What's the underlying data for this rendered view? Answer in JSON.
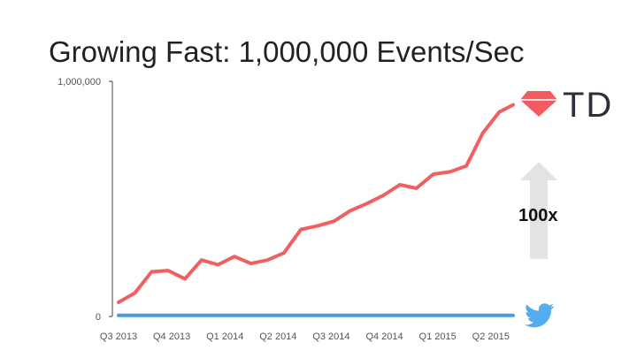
{
  "title": "Growing Fast: 1,000,000 Events/Sec",
  "multiplier_label": "100x",
  "logo_td_text": "TD",
  "icons": {
    "td_logo": "ruby-gem-icon",
    "bird_logo": "twitter-bird-icon",
    "growth_arrow": "arrow-up-icon"
  },
  "colors": {
    "td_series": "#f06060",
    "twitter_series": "#4a9be0",
    "arrow": "#e3e3e3",
    "gem": "#f25b60",
    "bird": "#55acee"
  },
  "chart_data": {
    "type": "line",
    "title": "Growing Fast: 1,000,000 Events/Sec",
    "xlabel": "",
    "ylabel": "",
    "ylim": [
      0,
      1000000
    ],
    "y_ticks": [
      {
        "value": 0,
        "label": "0"
      },
      {
        "value": 1000000,
        "label": "1,000,000"
      }
    ],
    "x_ticks": [
      {
        "pos": 0,
        "label": "Q3 2013"
      },
      {
        "pos": 1,
        "label": "Q4 2013"
      },
      {
        "pos": 2,
        "label": "Q1 2014"
      },
      {
        "pos": 3,
        "label": "Q2 2014"
      },
      {
        "pos": 4,
        "label": "Q3 2014"
      },
      {
        "pos": 5,
        "label": "Q4 2014"
      },
      {
        "pos": 6,
        "label": "Q1 2015"
      },
      {
        "pos": 7,
        "label": "Q2 2015"
      }
    ],
    "xlim": [
      0,
      7.42
    ],
    "series": [
      {
        "x": [
          0,
          0.31,
          0.62,
          0.93,
          1.25,
          1.56,
          1.87,
          2.18,
          2.49,
          2.8,
          3.11,
          3.43,
          3.74,
          4.05,
          4.36,
          4.67,
          4.98,
          5.29,
          5.6,
          5.92,
          6.23,
          6.54,
          6.85,
          7.16,
          7.42
        ],
        "values": [
          60000,
          100000,
          190000,
          195000,
          160000,
          240000,
          220000,
          255000,
          225000,
          240000,
          270000,
          370000,
          385000,
          405000,
          450000,
          480000,
          515000,
          560000,
          545000,
          605000,
          615000,
          640000,
          780000,
          870000,
          900000
        ]
      },
      {
        "x": [
          0,
          7.42
        ],
        "values": [
          5000,
          5000
        ]
      }
    ]
  }
}
